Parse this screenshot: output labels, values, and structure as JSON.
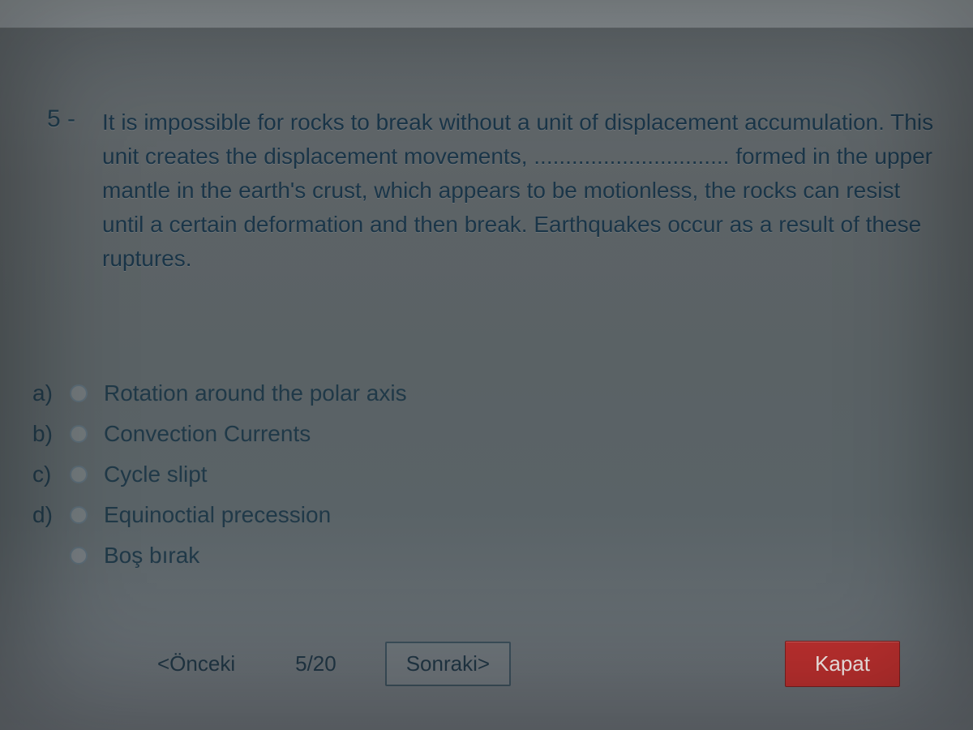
{
  "question": {
    "number": "5 -",
    "text": "It is impossible for rocks to break without a unit of displacement accumulation. This unit creates the displacement movements, ............................... formed in the upper mantle in the earth's crust, which appears to be motionless, the rocks can resist until a certain deformation and then break. Earthquakes occur as a result of these ruptures."
  },
  "answers": [
    {
      "letter": "a)",
      "text": "Rotation around the polar axis"
    },
    {
      "letter": "b)",
      "text": "Convection Currents"
    },
    {
      "letter": "c)",
      "text": "Cycle slipt"
    },
    {
      "letter": "d)",
      "text": "Equinoctial precession"
    },
    {
      "letter": "",
      "text": "Boş bırak"
    }
  ],
  "nav": {
    "prev": "<Önceki",
    "counter": "5/20",
    "next": "Sonraki>",
    "close": "Kapat"
  },
  "colors": {
    "text": "#1a3548",
    "close_bg": "#b92f2e",
    "close_fg": "#f4e9e6"
  }
}
